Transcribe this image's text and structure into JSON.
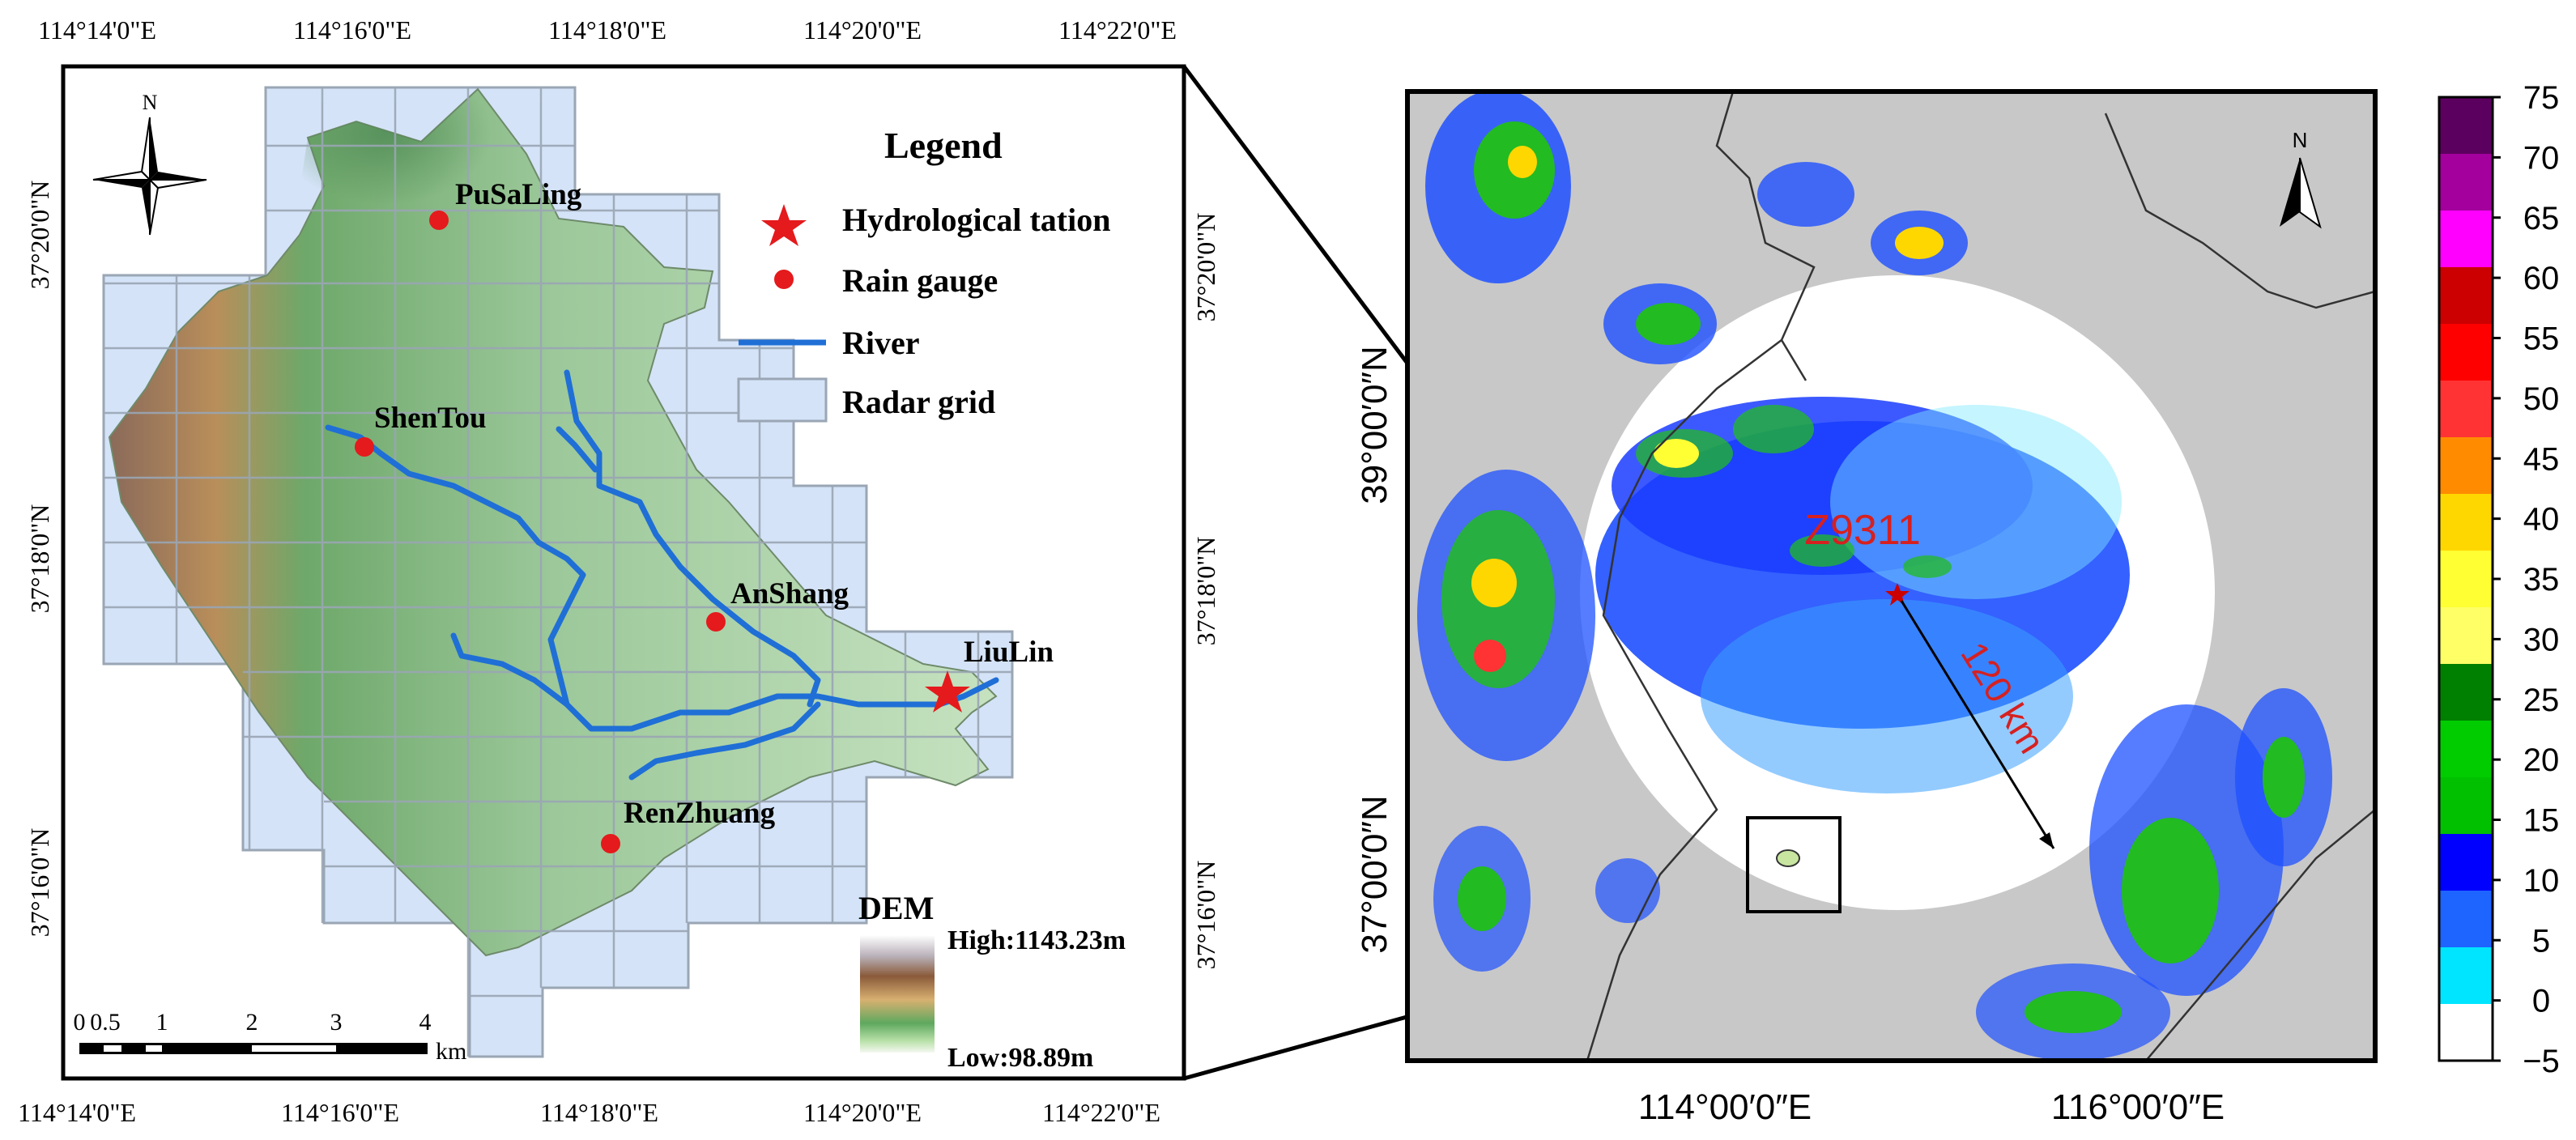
{
  "left_map": {
    "top_lon_ticks": [
      "114°14'0\"E",
      "114°16'0\"E",
      "114°18'0\"E",
      "114°20'0\"E",
      "114°22'0\"E"
    ],
    "bottom_lon_ticks": [
      "114°14'0\"E",
      "114°16'0\"E",
      "114°18'0\"E",
      "114°20'0\"E",
      "114°22'0\"E"
    ],
    "left_lat_ticks": [
      "37°20'0\"N",
      "37°18'0\"N",
      "37°16'0\"N"
    ],
    "right_lat_ticks": [
      "37°20'0\"N",
      "37°18'0\"N",
      "37°16'0\"N"
    ],
    "north_label": "N",
    "stations": [
      {
        "name": "PuSaLing",
        "type": "rain_gauge"
      },
      {
        "name": "ShenTou",
        "type": "rain_gauge"
      },
      {
        "name": "AnShang",
        "type": "rain_gauge"
      },
      {
        "name": "RenZhuang",
        "type": "rain_gauge"
      },
      {
        "name": "LiuLin",
        "type": "hydrological_station"
      }
    ],
    "legend": {
      "title": "Legend",
      "items": [
        "Hydrological tation",
        "Rain gauge",
        "River",
        "Radar grid"
      ]
    },
    "dem": {
      "title": "DEM",
      "high": "High:1143.23m",
      "low": "Low:98.89m"
    },
    "scalebar": {
      "ticks": [
        "0",
        "0.5",
        "1",
        "2",
        "3",
        "4"
      ],
      "unit": "km"
    },
    "colors": {
      "station": "#e41a1c",
      "river": "#1f6fd6",
      "grid_fill": "#cfe0f5",
      "grid_line": "#9aa6b4"
    }
  },
  "right_map": {
    "radar_label": "Z9311",
    "range_label": "120 km",
    "x_ticks": [
      "114°00′0″E",
      "116°00′0″E"
    ],
    "y_ticks": [
      "39°00′0″N",
      "37°00′0″N"
    ],
    "north_label": "N"
  },
  "colorbar": {
    "ticks": [
      "75",
      "70",
      "65",
      "60",
      "55",
      "50",
      "45",
      "40",
      "35",
      "30",
      "25",
      "20",
      "15",
      "10",
      "5",
      "0",
      "−5"
    ],
    "colors": [
      "#5c0060",
      "#a3009e",
      "#ff00ff",
      "#cc0000",
      "#ff0000",
      "#ff3333",
      "#ff8c00",
      "#ffd700",
      "#ffff33",
      "#ffff66",
      "#008000",
      "#00cc00",
      "#00c000",
      "#0000ff",
      "#1e64ff",
      "#00e5ff",
      "#ffffff"
    ]
  }
}
